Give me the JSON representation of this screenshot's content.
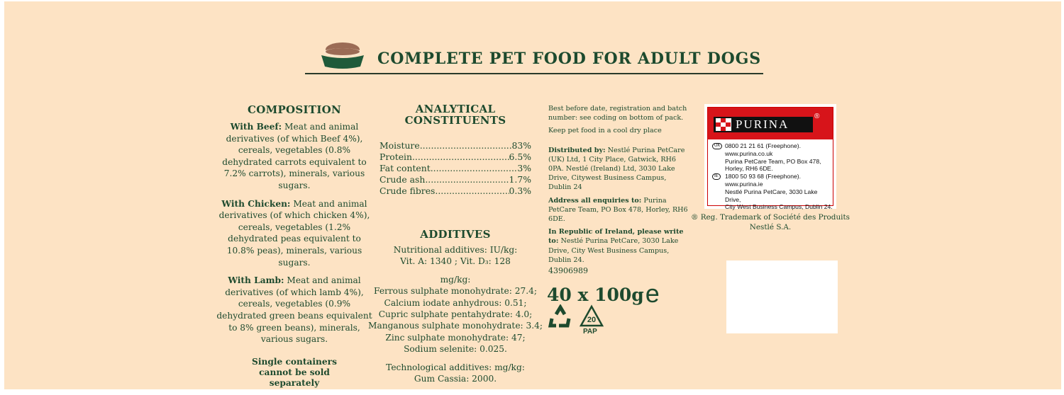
{
  "header": {
    "title": "COMPLETE PET FOOD FOR ADULT DOGS",
    "icon": "dog-bowl-icon"
  },
  "composition": {
    "heading": "COMPOSITION",
    "items": [
      {
        "label": "With Beef:",
        "text": "Meat and animal derivatives (of which Beef 4%), cereals, vegetables (0.8% dehydrated carrots equivalent to 7.2% carrots), minerals, various sugars."
      },
      {
        "label": "With Chicken:",
        "text": "Meat and animal derivatives (of which chicken 4%), cereals, vegetables (1.2% dehydrated peas equivalent to 10.8% peas), minerals, various sugars."
      },
      {
        "label": "With Lamb:",
        "text": "Meat and animal derivatives (of which lamb 4%), cereals, vegetables (0.9% dehydrated green beans equivalent to 8% green beans), minerals, various sugars."
      }
    ],
    "note": "Single containers cannot be sold separately"
  },
  "analytical": {
    "heading_1": "ANALYTICAL",
    "heading_2": "CONSTITUENTS",
    "rows": [
      {
        "name": "Moisture",
        "value": "83%"
      },
      {
        "name": "Protein",
        "value": "6.5%"
      },
      {
        "name": "Fat content",
        "value": "3%"
      },
      {
        "name": "Crude ash",
        "value": "1.7%"
      },
      {
        "name": "Crude fibres",
        "value": "0.3%"
      }
    ]
  },
  "additives": {
    "heading": "ADDITIVES",
    "nutritional": "Nutritional additives: IU/kg:",
    "vitamins": "Vit. A: 1340 ; Vit. D₃: 128",
    "unit": "mg/kg:",
    "lines": [
      "Ferrous sulphate monohydrate: 27.4;",
      "Calcium iodate anhydrous: 0.51;",
      "Cupric sulphate pentahydrate: 4.0;",
      "Manganous sulphate monohydrate: 3.4;",
      "Zinc sulphate monohydrate: 47;",
      "Sodium selenite: 0.025."
    ],
    "technological": "Technological additives: mg/kg:",
    "gum": "Gum Cassia: 2000."
  },
  "info": {
    "best_before": "Best before date, registration and batch number: see coding on bottom of pack.",
    "storage": "Keep pet food in a cool dry place",
    "distributed_label": "Distributed by:",
    "distributed": "Nestlé Purina PetCare (UK) Ltd, 1 City Place, Gatwick, RH6 0PA. Nestlé (Ireland) Ltd, 3030 Lake Drive, Citywest Business Campus, Dublin 24",
    "enquiries_label": "Address all enquiries to:",
    "enquiries": "Purina PetCare Team, PO Box 478,  Horley, RH6 6DE.",
    "ireland_label": "In Republic of Ireland, please write to:",
    "ireland": "Nestlé Purina PetCare, 3030 Lake Drive, City West Business Campus, Dublin 24.",
    "code": "43906989",
    "quantity": "40 x 100g",
    "estimated_mark": "e",
    "recycle_number": "20",
    "recycle_code": "PAP"
  },
  "purina": {
    "brand": "PURINA",
    "uk_badge": "UK",
    "uk": [
      "0800 21 21 61 (Freephone).",
      "www.purina.co.uk",
      "Purina PetCare Team, PO Box 478,",
      "Horley, RH6 6DE."
    ],
    "ie_badge": "IE",
    "ie": [
      "1800 50 93 68 (Freephone).",
      "www.purina.ie",
      "Nestlé Purina PetCare, 3030 Lake Drive,",
      "City West Business Campus, Dublin 24."
    ],
    "trademark": "® Reg. Trademark of Société des Produits Nestlé S.A."
  },
  "colors": {
    "background": "#fde3c4",
    "text": "#1d4a2e",
    "brand_red": "#d7141a"
  }
}
